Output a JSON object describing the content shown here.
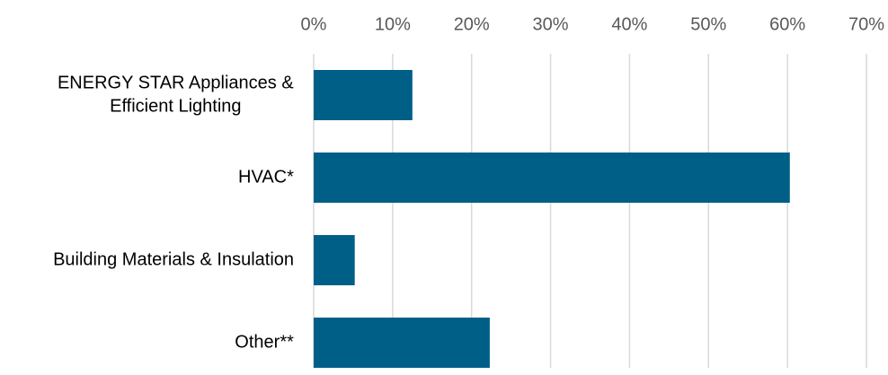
{
  "chart_data": {
    "type": "bar",
    "orientation": "horizontal",
    "categories": [
      [
        "ENERGY STAR Appliances &",
        "Efficient Lighting"
      ],
      [
        "HVAC*"
      ],
      [
        "Building Materials & Insulation"
      ],
      [
        "Other**"
      ]
    ],
    "values": [
      12.5,
      60.3,
      5.2,
      22.3
    ],
    "xlim": [
      0,
      70
    ],
    "x_ticks": [
      0,
      10,
      20,
      30,
      40,
      50,
      60,
      70
    ],
    "x_tick_labels": [
      "0%",
      "10%",
      "20%",
      "30%",
      "40%",
      "50%",
      "60%",
      "70%"
    ],
    "tick_position": "top",
    "grid": true,
    "legend": false,
    "bar_color": "#005f87",
    "grid_color": "#d9d9d9"
  }
}
